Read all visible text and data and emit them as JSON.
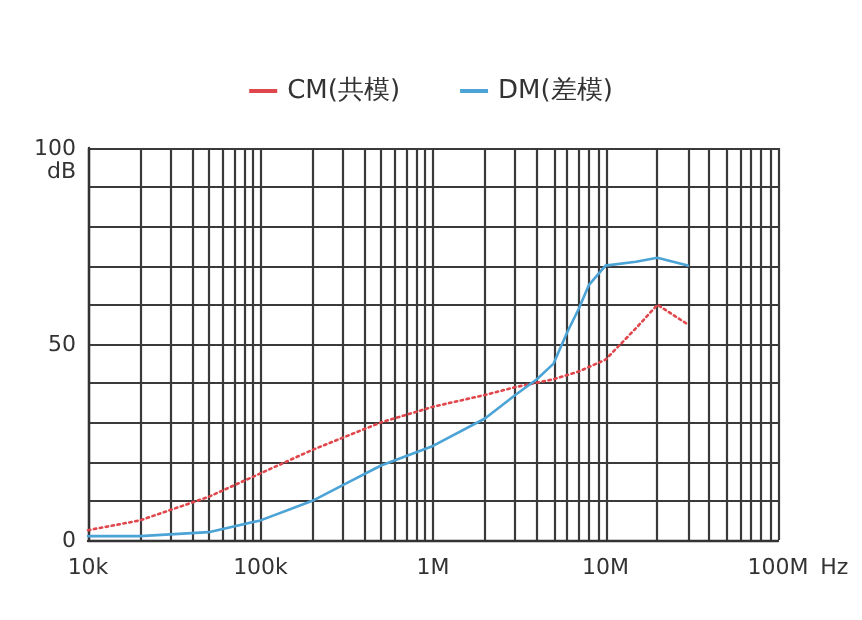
{
  "chart_data": {
    "type": "line",
    "xlabel": "Hz",
    "ylabel": "dB",
    "log": "x",
    "xlim": [
      10000,
      100000000
    ],
    "ylim": [
      0,
      100
    ],
    "xticks": [
      {
        "value": 10000,
        "label": "10k"
      },
      {
        "value": 20000,
        "label": null
      },
      {
        "value": 30000,
        "label": null
      },
      {
        "value": 40000,
        "label": null
      },
      {
        "value": 50000,
        "label": null
      },
      {
        "value": 60000,
        "label": null
      },
      {
        "value": 70000,
        "label": null
      },
      {
        "value": 80000,
        "label": null
      },
      {
        "value": 90000,
        "label": null
      },
      {
        "value": 100000,
        "label": "100k"
      },
      {
        "value": 200000,
        "label": null
      },
      {
        "value": 300000,
        "label": null
      },
      {
        "value": 400000,
        "label": null
      },
      {
        "value": 500000,
        "label": null
      },
      {
        "value": 600000,
        "label": null
      },
      {
        "value": 700000,
        "label": null
      },
      {
        "value": 800000,
        "label": null
      },
      {
        "value": 900000,
        "label": null
      },
      {
        "value": 1000000,
        "label": "1M"
      },
      {
        "value": 2000000,
        "label": null
      },
      {
        "value": 3000000,
        "label": null
      },
      {
        "value": 4000000,
        "label": null
      },
      {
        "value": 5000000,
        "label": null
      },
      {
        "value": 6000000,
        "label": null
      },
      {
        "value": 7000000,
        "label": null
      },
      {
        "value": 8000000,
        "label": null
      },
      {
        "value": 9000000,
        "label": null
      },
      {
        "value": 10000000,
        "label": "10M"
      },
      {
        "value": 20000000,
        "label": null
      },
      {
        "value": 30000000,
        "label": null
      },
      {
        "value": 40000000,
        "label": null
      },
      {
        "value": 50000000,
        "label": null
      },
      {
        "value": 60000000,
        "label": null
      },
      {
        "value": 70000000,
        "label": null
      },
      {
        "value": 80000000,
        "label": null
      },
      {
        "value": 90000000,
        "label": null
      },
      {
        "value": 100000000,
        "label": "100M"
      }
    ],
    "yticks": [
      0,
      {
        "value": 10,
        "label": null
      },
      {
        "value": 20,
        "label": null
      },
      {
        "value": 30,
        "label": null
      },
      {
        "value": 40,
        "label": null
      },
      50,
      {
        "value": 60,
        "label": null
      },
      {
        "value": 70,
        "label": null
      },
      {
        "value": 80,
        "label": null
      },
      {
        "value": 90,
        "label": null
      },
      100
    ],
    "grid": true,
    "legend": "top",
    "marker": "none",
    "series": [
      {
        "name": "CM(共模)",
        "color": "#e0474c",
        "line_style": "dotted",
        "x": [
          10000,
          20000,
          50000,
          100000,
          200000,
          500000,
          1000000,
          2000000,
          3000000,
          5000000,
          7000000,
          10000000,
          15000000,
          20000000,
          30000000
        ],
        "values": [
          2.5,
          5,
          11,
          17,
          23,
          30,
          34,
          37,
          39,
          41,
          43,
          46,
          54,
          60,
          55
        ]
      },
      {
        "name": "DM(差模)",
        "color": "#4ba3d6",
        "line_style": "solid",
        "x": [
          10000,
          20000,
          50000,
          100000,
          200000,
          300000,
          500000,
          1000000,
          2000000,
          3000000,
          4000000,
          5000000,
          6000000,
          7000000,
          8000000,
          10000000,
          15000000,
          20000000,
          30000000
        ],
        "values": [
          1,
          1,
          2,
          5,
          10,
          14,
          19,
          24,
          31,
          37,
          41,
          45,
          53,
          59,
          65,
          70,
          71,
          72,
          70
        ]
      }
    ]
  }
}
